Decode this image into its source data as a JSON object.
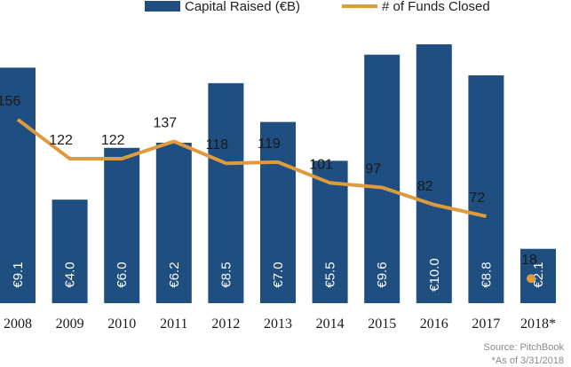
{
  "chart_data": {
    "type": "bar",
    "categories": [
      "2008",
      "2009",
      "2010",
      "2011",
      "2012",
      "2013",
      "2014",
      "2015",
      "2016",
      "2017",
      "2018*"
    ],
    "series": [
      {
        "name": "Capital Raised (€B)",
        "type": "bar",
        "values": [
          9.1,
          4.0,
          6.0,
          6.2,
          8.5,
          7.0,
          5.5,
          9.6,
          10.0,
          8.8,
          2.1
        ],
        "labels": [
          "€9.1",
          "€4.0",
          "€6.0",
          "€6.2",
          "€8.5",
          "€7.0",
          "€5.5",
          "€9.6",
          "€10.0",
          "€8.8",
          "€2.1"
        ],
        "color": "#1f4e80"
      },
      {
        "name": "# of Funds Closed",
        "type": "line",
        "values": [
          156,
          122,
          122,
          137,
          118,
          119,
          101,
          97,
          82,
          72,
          18
        ],
        "line_through_index": 9,
        "color": "#e09a3e"
      }
    ],
    "legend": "top-center",
    "grid": false
  },
  "source": "Source: PitchBook",
  "footnote": "*As of 3/31/2018"
}
